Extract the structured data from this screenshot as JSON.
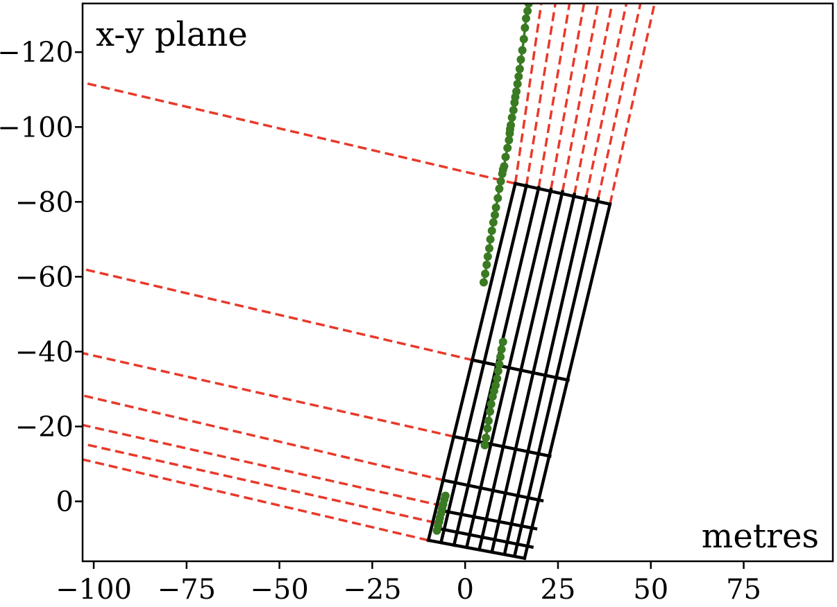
{
  "chart_data": {
    "type": "line",
    "title": "x-y plane",
    "unit_label": "metres",
    "xlabel": "",
    "ylabel": "",
    "xlim": [
      -103,
      99
    ],
    "ylim": [
      -133,
      16
    ],
    "y_inverted": true,
    "grid": false,
    "x_ticks": [
      -100,
      -75,
      -50,
      -25,
      0,
      25,
      50,
      75
    ],
    "x_tick_labels": [
      "−100",
      "−75",
      "−50",
      "−25",
      "0",
      "25",
      "50",
      "75"
    ],
    "y_ticks": [
      -120,
      -100,
      -80,
      -60,
      -40,
      -20,
      0
    ],
    "y_tick_labels": [
      "−120",
      "−100",
      "−80",
      "−60",
      "−40",
      "−20",
      "0"
    ],
    "colors": {
      "grid_frame": "#000000",
      "dashed_rays": "#e8392a",
      "track": "#3a7a22"
    },
    "grid_frame": {
      "long_lines": [
        {
          "start": [
            -9.9,
            10.4
          ],
          "end": [
            13.5,
            -84.9
          ]
        },
        {
          "start": [
            -6.5,
            11.0
          ],
          "end": [
            16.5,
            -84.4
          ]
        },
        {
          "start": [
            -3.0,
            11.7
          ],
          "end": [
            19.8,
            -83.8
          ]
        },
        {
          "start": [
            0.4,
            12.3
          ],
          "end": [
            23.1,
            -83.3
          ]
        },
        {
          "start": [
            3.8,
            12.9
          ],
          "end": [
            26.2,
            -82.7
          ]
        },
        {
          "start": [
            7.2,
            13.5
          ],
          "end": [
            29.4,
            -82.0
          ]
        },
        {
          "start": [
            10.6,
            14.1
          ],
          "end": [
            32.6,
            -81.4
          ]
        },
        {
          "start": [
            13.3,
            14.6
          ],
          "end": [
            35.8,
            -80.8
          ]
        },
        {
          "start": [
            16.0,
            15.2
          ],
          "end": [
            39.0,
            -79.4
          ]
        }
      ],
      "cross_lines": [
        {
          "start": [
            -9.9,
            10.4
          ],
          "end": [
            16.0,
            15.2
          ]
        },
        {
          "start": [
            -6.9,
            7.3
          ],
          "end": [
            18.0,
            12.2
          ]
        },
        {
          "start": [
            -5.6,
            2.6
          ],
          "end": [
            19.0,
            7.3
          ]
        },
        {
          "start": [
            -5.6,
            -5.6
          ],
          "end": [
            20.7,
            -0.2
          ]
        },
        {
          "start": [
            -3.0,
            -17.3
          ],
          "end": [
            22.8,
            -12.1
          ]
        },
        {
          "start": [
            2.2,
            -37.7
          ],
          "end": [
            27.7,
            -32.4
          ]
        },
        {
          "start": [
            13.5,
            -84.9
          ],
          "end": [
            39.0,
            -79.4
          ]
        }
      ]
    },
    "dashed_rays": [
      {
        "start": [
          13.5,
          -84.9
        ],
        "end": [
          -103,
          -111.9
        ]
      },
      {
        "start": [
          2.2,
          -37.7
        ],
        "end": [
          -103,
          -62.1
        ]
      },
      {
        "start": [
          -3.0,
          -17.3
        ],
        "end": [
          -103,
          -39.6
        ]
      },
      {
        "start": [
          -5.6,
          -5.6
        ],
        "end": [
          -103,
          -28.3
        ]
      },
      {
        "start": [
          -6.1,
          1.2
        ],
        "end": [
          -103,
          -20.4
        ]
      },
      {
        "start": [
          -8.0,
          5.7
        ],
        "end": [
          -103,
          -15.4
        ]
      },
      {
        "start": [
          -9.9,
          10.4
        ],
        "end": [
          -103,
          -11.2
        ]
      },
      {
        "start": [
          13.5,
          -84.9
        ],
        "end": [
          20.5,
          -133
        ]
      },
      {
        "start": [
          16.5,
          -84.4
        ],
        "end": [
          24.3,
          -133
        ]
      },
      {
        "start": [
          19.8,
          -83.8
        ],
        "end": [
          28.1,
          -133
        ]
      },
      {
        "start": [
          23.1,
          -83.3
        ],
        "end": [
          32.0,
          -133
        ]
      },
      {
        "start": [
          26.2,
          -82.7
        ],
        "end": [
          35.8,
          -133
        ]
      },
      {
        "start": [
          29.4,
          -82.0
        ],
        "end": [
          39.6,
          -133
        ]
      },
      {
        "start": [
          32.6,
          -81.4
        ],
        "end": [
          43.4,
          -133
        ]
      },
      {
        "start": [
          35.8,
          -80.8
        ],
        "end": [
          47.2,
          -133
        ]
      },
      {
        "start": [
          39.0,
          -79.4
        ],
        "end": [
          51.0,
          -133
        ]
      }
    ],
    "series": [
      {
        "values": [
          [
            5.0,
            -58.5
          ],
          [
            5.4,
            -60.8
          ],
          [
            5.8,
            -63.2
          ],
          [
            6.1,
            -65.4
          ],
          [
            6.5,
            -67.6
          ],
          [
            6.8,
            -70.0
          ],
          [
            7.2,
            -72.3
          ],
          [
            7.6,
            -74.5
          ],
          [
            8.0,
            -76.5
          ],
          [
            8.3,
            -78.5
          ],
          [
            8.8,
            -81.0
          ],
          [
            9.2,
            -83.5
          ],
          [
            9.6,
            -85.5
          ],
          [
            10.0,
            -87.5
          ],
          [
            10.2,
            -88.6
          ],
          [
            10.5,
            -89.5
          ],
          [
            10.9,
            -92.0
          ],
          [
            11.4,
            -94.4
          ],
          [
            11.8,
            -96.5
          ],
          [
            12.0,
            -98.3
          ],
          [
            12.1,
            -99.4
          ],
          [
            12.3,
            -100.5
          ],
          [
            12.6,
            -102.5
          ],
          [
            13.0,
            -104.5
          ],
          [
            13.3,
            -106.5
          ],
          [
            13.5,
            -108.0
          ],
          [
            13.8,
            -109.5
          ],
          [
            14.1,
            -111.5
          ],
          [
            14.4,
            -113.5
          ],
          [
            14.7,
            -115.5
          ],
          [
            15.0,
            -118.0
          ],
          [
            15.4,
            -120.5
          ],
          [
            15.8,
            -123.5
          ],
          [
            16.1,
            -126.5
          ],
          [
            16.4,
            -129.0
          ],
          [
            16.8,
            -131.0
          ],
          [
            17.1,
            -133.0
          ]
        ]
      },
      {
        "values": [
          [
            5.3,
            -15.0
          ],
          [
            5.6,
            -17.0
          ],
          [
            6.0,
            -19.5
          ],
          [
            6.3,
            -21.5
          ],
          [
            6.7,
            -24.0
          ],
          [
            7.0,
            -26.0
          ],
          [
            7.4,
            -28.0
          ],
          [
            7.8,
            -29.5
          ],
          [
            8.2,
            -31.0
          ],
          [
            8.6,
            -32.8
          ],
          [
            8.9,
            -34.8
          ],
          [
            9.2,
            -36.6
          ],
          [
            9.5,
            -38.6
          ],
          [
            9.8,
            -40.6
          ],
          [
            10.2,
            -42.6
          ]
        ]
      },
      {
        "values": [
          [
            -7.6,
            7.8
          ],
          [
            -7.3,
            6.6
          ],
          [
            -7.0,
            5.4
          ],
          [
            -6.8,
            4.4
          ],
          [
            -6.5,
            3.2
          ],
          [
            -6.2,
            2.0
          ],
          [
            -5.9,
            0.8
          ],
          [
            -5.6,
            -0.5
          ],
          [
            -5.3,
            -1.5
          ]
        ]
      }
    ]
  }
}
